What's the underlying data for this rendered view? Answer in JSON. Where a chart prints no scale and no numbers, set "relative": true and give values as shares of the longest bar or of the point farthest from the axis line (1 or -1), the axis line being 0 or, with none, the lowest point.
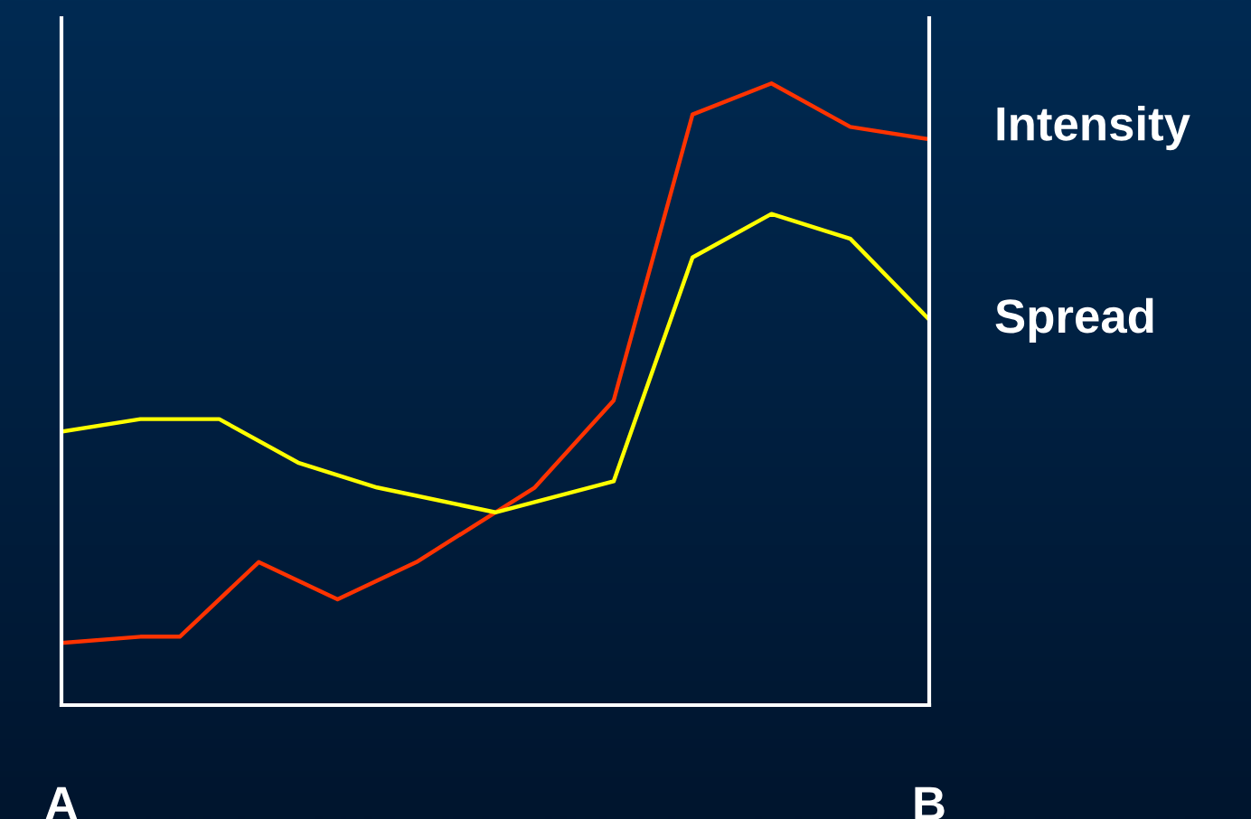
{
  "chart_data": {
    "type": "line",
    "relative": true,
    "categories": [
      "A",
      null,
      null,
      null,
      null,
      null,
      null,
      null,
      null,
      null,
      null,
      null,
      null,
      null,
      null,
      null,
      null,
      null,
      null,
      null,
      null,
      null,
      "B"
    ],
    "series": [
      {
        "name": "Intensity",
        "color": "#ff3300",
        "values": [
          0.1,
          null,
          0.11,
          0.11,
          null,
          0.23,
          null,
          0.17,
          null,
          0.23,
          null,
          null,
          0.35,
          null,
          0.49,
          null,
          0.95,
          null,
          1.0,
          null,
          0.93,
          null,
          0.91
        ]
      },
      {
        "name": "Spread",
        "color": "#ffff00",
        "values": [
          0.44,
          null,
          0.46,
          null,
          0.46,
          null,
          0.39,
          null,
          0.35,
          null,
          null,
          0.31,
          null,
          null,
          0.36,
          null,
          0.72,
          null,
          0.79,
          null,
          0.75,
          null,
          0.62
        ]
      }
    ],
    "marker": "none",
    "line_style": "solid"
  }
}
